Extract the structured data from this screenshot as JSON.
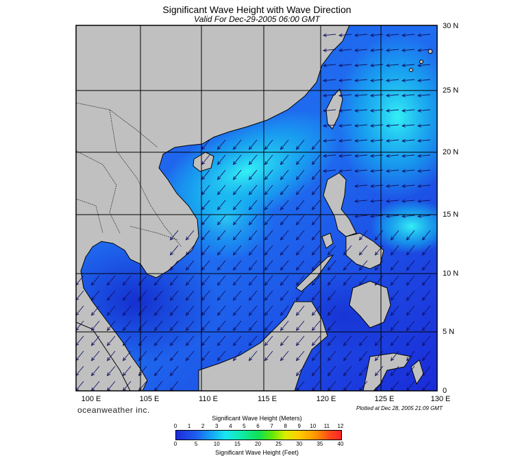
{
  "title": "Significant Wave Height with Wave Direction",
  "subtitle": "Valid For Dec-29-2005 06:00 GMT",
  "brand": "oceanweather inc.",
  "plotted": "Plotted at Dec 28, 2005 21:09 GMT",
  "lat_labels": [
    "30 N",
    "25 N",
    "20 N",
    "15 N",
    "10 N",
    "5 N",
    "0"
  ],
  "lon_labels": [
    "100 E",
    "105 E",
    "110 E",
    "115 E",
    "120 E",
    "125 E",
    "130 E"
  ],
  "colorbar": {
    "title_meters": "Significant Wave Height (Meters)",
    "title_feet": "Significant Wave Height (Feet)",
    "meter_ticks": [
      "0",
      "1",
      "2",
      "3",
      "4",
      "5",
      "6",
      "7",
      "8",
      "9",
      "10",
      "11",
      "12"
    ],
    "feet_ticks": [
      "0",
      "5",
      "10",
      "15",
      "20",
      "25",
      "30",
      "35",
      "40"
    ]
  },
  "colors": {
    "land": "#c0c0c0",
    "low_wave": "#1a2bd8",
    "high_wave": "#19e6f0"
  }
}
